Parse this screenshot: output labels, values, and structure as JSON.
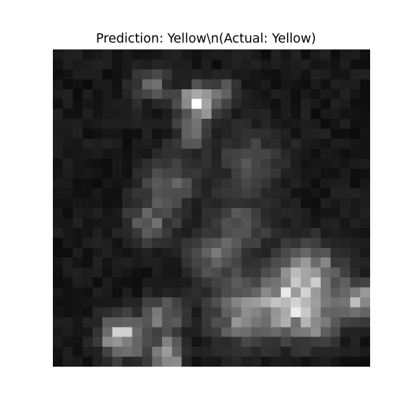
{
  "title": "Prediction: Yellow\\n(Actual: Yellow)",
  "image": {
    "description_icon": "grayscale-thermal-image-icon",
    "colormap": "gray"
  }
}
